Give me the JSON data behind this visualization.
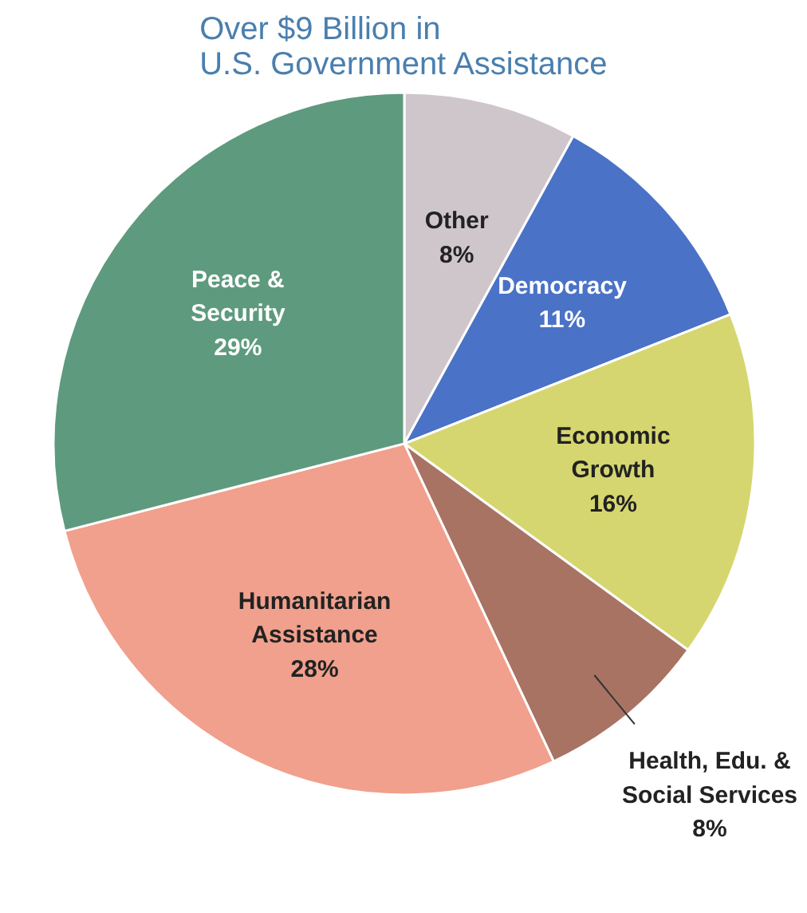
{
  "chart_data": {
    "type": "pie",
    "title": "Over $9 Billion in\nU.S. Government Assistance",
    "categories": [
      "Other",
      "Democracy",
      "Economic\nGrowth",
      "Health, Edu. &\nSocial Services",
      "Humanitarian\nAssistance",
      "Peace &\nSecurity"
    ],
    "values": [
      8,
      11,
      16,
      8,
      28,
      29
    ],
    "colors": [
      "#cfc6cb",
      "#4a72c6",
      "#d6d670",
      "#a87363",
      "#f0a08c",
      "#5e9a7e"
    ],
    "value_labels": [
      "8%",
      "11%",
      "16%",
      "8%",
      "28%",
      "29%"
    ]
  }
}
